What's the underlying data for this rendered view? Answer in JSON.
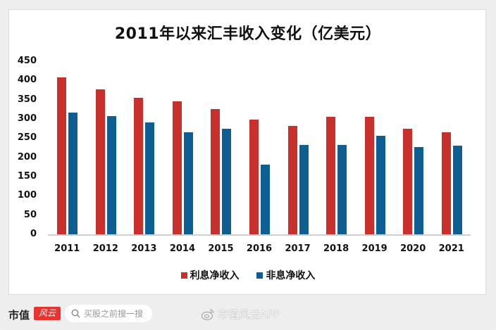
{
  "chart_data": {
    "type": "bar",
    "title": "2011年以来汇丰收入变化（亿美元）",
    "xlabel": "",
    "ylabel": "",
    "ylim": [
      0,
      450
    ],
    "yticks": [
      "450",
      "400",
      "350",
      "300",
      "250",
      "200",
      "150",
      "100",
      "50",
      "0"
    ],
    "grid": false,
    "legend_position": "bottom",
    "categories": [
      "2011",
      "2012",
      "2013",
      "2014",
      "2015",
      "2016",
      "2017",
      "2018",
      "2019",
      "2020",
      "2021"
    ],
    "series": [
      {
        "name": "利息净收入",
        "color": "#c9302c",
        "values": [
          408,
          377,
          354,
          346,
          325,
          298,
          282,
          305,
          305,
          275,
          265
        ]
      },
      {
        "name": "非息净收入",
        "color": "#0d5f93",
        "values": [
          317,
          307,
          291,
          266,
          275,
          181,
          233,
          233,
          256,
          227,
          231
        ]
      }
    ]
  },
  "footer": {
    "logo_text": "市值",
    "logo_badge": "风云",
    "search_placeholder": "买股之前搜一搜",
    "watermark": "市值风云APP"
  }
}
